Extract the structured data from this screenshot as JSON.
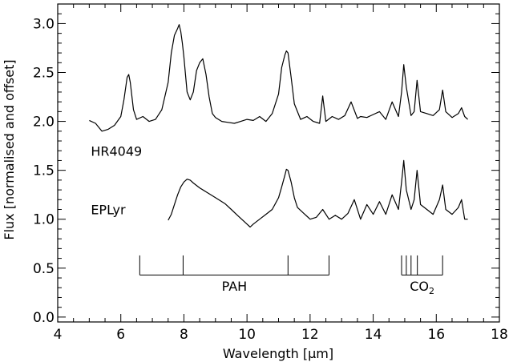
{
  "chart_data": {
    "type": "line",
    "title": "",
    "xlabel": "Wavelength [μm]",
    "ylabel": "Flux [normalised and offset]",
    "xlim": [
      4,
      18
    ],
    "ylim": [
      -0.05,
      3.2
    ],
    "xticks": [
      4,
      6,
      8,
      10,
      12,
      14,
      16,
      18
    ],
    "xtick_labels": [
      "4",
      "6",
      "8",
      "10",
      "12",
      "14",
      "16",
      "18"
    ],
    "yticks": [
      0.0,
      0.5,
      1.0,
      1.5,
      2.0,
      2.5,
      3.0
    ],
    "ytick_labels": [
      "0.0",
      "0.5",
      "1.0",
      "1.5",
      "2.0",
      "2.5",
      "3.0"
    ],
    "grid": false,
    "series": [
      {
        "name": "HR4049",
        "x": [
          5.0,
          5.2,
          5.4,
          5.6,
          5.8,
          6.0,
          6.1,
          6.2,
          6.25,
          6.3,
          6.4,
          6.5,
          6.7,
          6.9,
          7.1,
          7.3,
          7.5,
          7.6,
          7.7,
          7.8,
          7.85,
          7.9,
          7.95,
          8.0,
          8.1,
          8.2,
          8.3,
          8.4,
          8.5,
          8.6,
          8.7,
          8.8,
          8.9,
          9.0,
          9.2,
          9.4,
          9.6,
          9.8,
          10.0,
          10.2,
          10.4,
          10.6,
          10.8,
          11.0,
          11.1,
          11.2,
          11.25,
          11.3,
          11.4,
          11.5,
          11.7,
          11.9,
          12.1,
          12.3,
          12.4,
          12.5,
          12.7,
          12.9,
          13.1,
          13.3,
          13.5,
          13.6,
          13.8,
          14.0,
          14.2,
          14.4,
          14.6,
          14.8,
          14.9,
          14.97,
          15.05,
          15.2,
          15.3,
          15.39,
          15.5,
          15.7,
          15.9,
          16.1,
          16.2,
          16.3,
          16.5,
          16.7,
          16.8,
          16.9,
          17.0
        ],
        "y": [
          2.01,
          1.98,
          1.9,
          1.92,
          1.96,
          2.05,
          2.22,
          2.45,
          2.48,
          2.4,
          2.12,
          2.02,
          2.05,
          2.0,
          2.02,
          2.12,
          2.4,
          2.7,
          2.88,
          2.95,
          2.99,
          2.92,
          2.8,
          2.66,
          2.3,
          2.22,
          2.3,
          2.52,
          2.6,
          2.64,
          2.48,
          2.25,
          2.08,
          2.04,
          2.0,
          1.99,
          1.98,
          2.0,
          2.02,
          2.01,
          2.05,
          2.0,
          2.08,
          2.28,
          2.55,
          2.68,
          2.72,
          2.7,
          2.45,
          2.18,
          2.02,
          2.05,
          2.0,
          1.98,
          2.26,
          2.0,
          2.05,
          2.02,
          2.06,
          2.2,
          2.03,
          2.05,
          2.04,
          2.07,
          2.1,
          2.02,
          2.2,
          2.05,
          2.3,
          2.58,
          2.35,
          2.06,
          2.1,
          2.42,
          2.1,
          2.08,
          2.06,
          2.12,
          2.32,
          2.1,
          2.04,
          2.08,
          2.14,
          2.05,
          2.02
        ]
      },
      {
        "name": "EPLyr",
        "x": [
          7.5,
          7.6,
          7.7,
          7.8,
          7.9,
          8.0,
          8.1,
          8.2,
          8.3,
          8.5,
          8.7,
          8.9,
          9.1,
          9.3,
          9.5,
          9.7,
          9.9,
          10.0,
          10.1,
          10.2,
          10.4,
          10.6,
          10.8,
          11.0,
          11.1,
          11.2,
          11.25,
          11.3,
          11.4,
          11.5,
          11.6,
          11.8,
          12.0,
          12.2,
          12.4,
          12.6,
          12.8,
          13.0,
          13.2,
          13.4,
          13.6,
          13.8,
          14.0,
          14.2,
          14.4,
          14.6,
          14.8,
          14.9,
          14.97,
          15.05,
          15.2,
          15.3,
          15.39,
          15.5,
          15.7,
          15.9,
          16.1,
          16.2,
          16.3,
          16.5,
          16.7,
          16.8,
          16.9,
          17.0
        ],
        "y": [
          0.99,
          1.05,
          1.15,
          1.25,
          1.33,
          1.38,
          1.41,
          1.4,
          1.37,
          1.32,
          1.28,
          1.24,
          1.2,
          1.16,
          1.1,
          1.04,
          0.98,
          0.95,
          0.92,
          0.95,
          1.0,
          1.05,
          1.1,
          1.22,
          1.33,
          1.45,
          1.51,
          1.5,
          1.38,
          1.22,
          1.12,
          1.06,
          1.0,
          1.02,
          1.1,
          1.0,
          1.04,
          1.0,
          1.06,
          1.2,
          1.0,
          1.15,
          1.05,
          1.18,
          1.05,
          1.25,
          1.1,
          1.38,
          1.6,
          1.3,
          1.1,
          1.2,
          1.5,
          1.15,
          1.1,
          1.05,
          1.2,
          1.35,
          1.1,
          1.05,
          1.12,
          1.2,
          1.0,
          1.0
        ]
      }
    ],
    "annotations": {
      "series_labels": [
        {
          "text": "HR4049",
          "x": 5.05,
          "y": 1.65
        },
        {
          "text": "EPLyr",
          "x": 5.05,
          "y": 1.05
        }
      ],
      "pah": {
        "label": "PAH",
        "bar_y": 0.43,
        "tick_top_y": 0.63,
        "label_y": 0.27,
        "positions": [
          6.6,
          7.975,
          11.3,
          12.6
        ]
      },
      "co2": {
        "label_main": "CO",
        "label_sub": "2",
        "bar_y": 0.43,
        "tick_top_y": 0.63,
        "label_y": 0.27,
        "positions": [
          14.9,
          15.05,
          15.2,
          15.4,
          16.2
        ]
      }
    }
  }
}
